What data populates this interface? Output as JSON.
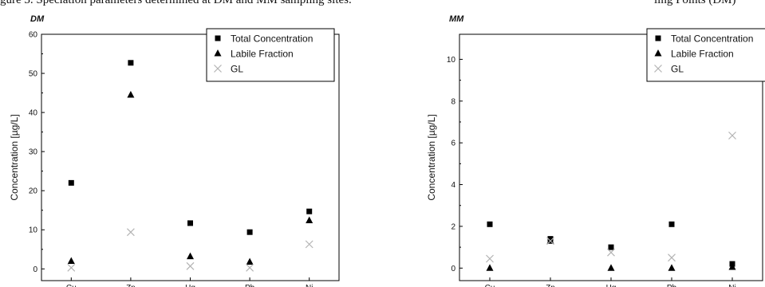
{
  "caption": {
    "left": "gure 3. Speciation parameters determined at DM and MM sampling sites.",
    "right": "ling Points (DM)"
  },
  "colors": {
    "total": "#000000",
    "labile": "#000000",
    "gl": "#b3b3b3",
    "axis": "#000000"
  },
  "chart_data": [
    {
      "type": "scatter",
      "title": "DM",
      "xlabel": "",
      "ylabel": "Concentration [µg/L]",
      "categories": [
        "Cu",
        "Zn",
        "Hg",
        "Pb",
        "Ni"
      ],
      "yticks": [
        0,
        10,
        20,
        30,
        40,
        50,
        60
      ],
      "ylim": [
        -3,
        60
      ],
      "legend_position": "top-right",
      "series": [
        {
          "name": "Total Concentration",
          "marker": "square",
          "values": [
            22,
            52.7,
            11.7,
            9.4,
            14.7
          ]
        },
        {
          "name": "Labile Fraction",
          "marker": "triangle",
          "values": [
            2,
            44.5,
            3.2,
            1.8,
            12.4
          ]
        },
        {
          "name": "GL",
          "marker": "cross",
          "values": [
            0.3,
            9.4,
            0.7,
            0.3,
            6.3
          ]
        }
      ]
    },
    {
      "type": "scatter",
      "title": "MM",
      "xlabel": "",
      "ylabel": "Concentration [µg/L]",
      "categories": [
        "Cu",
        "Zn",
        "Hg",
        "Pb",
        "Ni"
      ],
      "yticks": [
        0,
        2,
        4,
        6,
        8,
        10
      ],
      "ylim": [
        -0.6,
        11.2
      ],
      "legend_position": "top-right",
      "series": [
        {
          "name": "Total Concentration",
          "marker": "square",
          "values": [
            2.1,
            1.4,
            1.0,
            2.1,
            0.2
          ]
        },
        {
          "name": "Labile Fraction",
          "marker": "triangle",
          "values": [
            0,
            1.3,
            0,
            0,
            0.05
          ]
        },
        {
          "name": "GL",
          "marker": "cross",
          "values": [
            0.45,
            1.3,
            0.75,
            0.5,
            6.35
          ]
        }
      ]
    }
  ]
}
